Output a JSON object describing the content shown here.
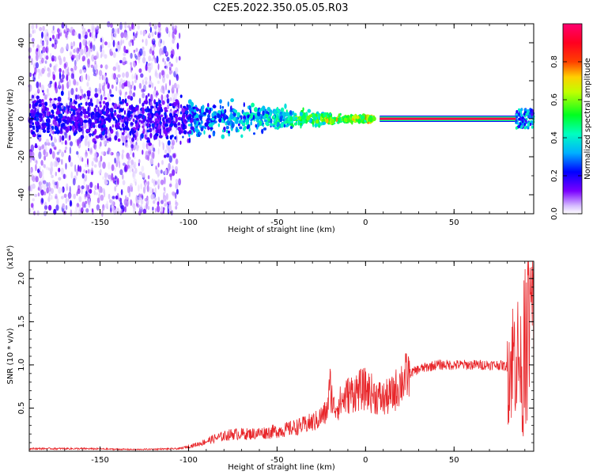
{
  "title": "C2E5.2022.350.05.05.R03",
  "chart_data": [
    {
      "type": "heatmap",
      "xlabel": "Height of straight line (km)",
      "ylabel": "Frequency (Hz)",
      "xlim": [
        -190,
        95
      ],
      "ylim": [
        -50,
        50
      ],
      "x_ticks": [
        -150,
        -100,
        -50,
        0,
        50
      ],
      "x_tick_labels": [
        "-150",
        "-100",
        "-50",
        "0",
        "50"
      ],
      "y_ticks": [
        -40,
        -20,
        0,
        20,
        40
      ],
      "y_tick_labels": [
        "-40",
        "-20",
        "0",
        "20",
        "40"
      ],
      "grid": false,
      "colorbar": {
        "label": "Normalized spectral amplitude",
        "range": [
          0,
          1
        ],
        "ticks": [
          0.0,
          0.2,
          0.4,
          0.6,
          0.8
        ],
        "tick_labels": [
          "0.0",
          "0.2",
          "0.4",
          "0.6",
          "0.8"
        ],
        "colormap": "rainbow (white-violet-blue-cyan-green-yellow-red-magenta)",
        "colors": [
          "#ffffff",
          "#c8a0ff",
          "#6a00ff",
          "#0000ff",
          "#00c8ff",
          "#00ff50",
          "#ffff00",
          "#ff0000",
          "#ff0060"
        ]
      },
      "features": {
        "scatter_region_x": [
          -190,
          -105
        ],
        "scatter_region_y": [
          -50,
          50
        ],
        "band_center_freq_hz": 0,
        "band_start_x": -105,
        "band_end_x": 5,
        "narrow_line_x": [
          8,
          85
        ],
        "narrow_line_freq_hz": 0,
        "narrow_line_amplitude": 1.0
      }
    },
    {
      "type": "line",
      "xlabel": "Height of straight line (km)",
      "ylabel": "SNR (10 * v/v)",
      "y_multiplier": "(x10⁴)",
      "xlim": [
        -190,
        95
      ],
      "ylim": [
        0,
        2.2
      ],
      "x_ticks": [
        -150,
        -100,
        -50,
        0,
        50
      ],
      "x_tick_labels": [
        "-150",
        "-100",
        "-50",
        "0",
        "50"
      ],
      "y_ticks": [
        0.5,
        1.0,
        1.5,
        2.0
      ],
      "y_tick_labels": [
        "0.5",
        "1.0",
        "1.5",
        "2.0"
      ],
      "grid": false,
      "line_color": "#e8262a",
      "series": [
        {
          "x": [
            -190,
            -160,
            -130,
            -105,
            -95,
            -85,
            -75,
            -65,
            -55,
            -45,
            -35,
            -28,
            -22,
            -20,
            -18,
            -15,
            -10,
            -5,
            0,
            5,
            10,
            15,
            20,
            25,
            30,
            40,
            50,
            60,
            70,
            75,
            80,
            82,
            85,
            88,
            90,
            92,
            95
          ],
          "values": [
            0.03,
            0.03,
            0.02,
            0.03,
            0.08,
            0.15,
            0.2,
            0.2,
            0.22,
            0.25,
            0.3,
            0.35,
            0.45,
            0.75,
            0.5,
            0.55,
            0.65,
            0.7,
            0.72,
            0.65,
            0.6,
            0.65,
            0.8,
            0.9,
            0.95,
            1.0,
            1.0,
            1.0,
            1.0,
            1.0,
            0.98,
            1.0,
            1.2,
            0.9,
            0.2,
            1.5,
            1.6
          ]
        }
      ]
    }
  ]
}
